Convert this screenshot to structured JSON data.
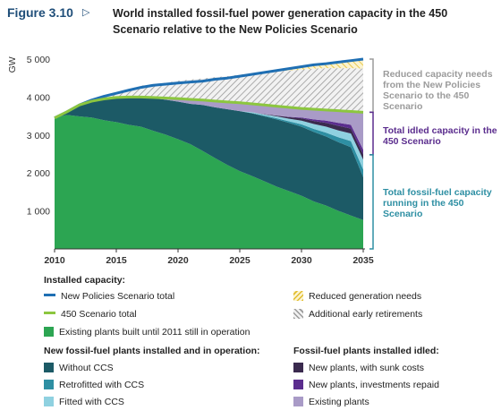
{
  "figure": {
    "number": "Figure 3.10",
    "arrow": "▷",
    "title": "World installed fossil-fuel power generation capacity in the 450 Scenario relative to the New Policies Scenario"
  },
  "chart_data": {
    "type": "area",
    "ylabel": "GW",
    "xlabel": "",
    "xlim": [
      2010,
      2035
    ],
    "ylim": [
      0,
      5000
    ],
    "x_ticks": [
      "2010",
      "2015",
      "2020",
      "2025",
      "2030",
      "2035"
    ],
    "y_ticks": [
      "1 000",
      "2 000",
      "3 000",
      "4 000",
      "5 000"
    ],
    "x": [
      2010,
      2011,
      2012,
      2013,
      2014,
      2015,
      2016,
      2017,
      2018,
      2019,
      2020,
      2021,
      2022,
      2023,
      2024,
      2025,
      2026,
      2027,
      2028,
      2029,
      2030,
      2031,
      2032,
      2033,
      2034,
      2035
    ],
    "lines": [
      {
        "name": "New Policies Scenario total",
        "color": "#1f6fb3",
        "values": [
          3450,
          3610,
          3790,
          3920,
          4020,
          4100,
          4180,
          4255,
          4310,
          4340,
          4370,
          4395,
          4420,
          4470,
          4500,
          4550,
          4600,
          4650,
          4700,
          4750,
          4800,
          4850,
          4880,
          4920,
          4960,
          5000
        ]
      },
      {
        "name": "450 Scenario total",
        "color": "#8cc63f",
        "values": [
          3450,
          3610,
          3790,
          3890,
          3950,
          3990,
          4000,
          4000,
          3990,
          3975,
          3960,
          3940,
          3920,
          3895,
          3870,
          3850,
          3820,
          3790,
          3760,
          3730,
          3700,
          3680,
          3660,
          3640,
          3620,
          3600
        ]
      }
    ],
    "areas": [
      {
        "name": "Existing plants built until 2011 still in operation",
        "color": "#2ca552",
        "values": [
          3450,
          3530,
          3490,
          3460,
          3390,
          3340,
          3270,
          3220,
          3110,
          3010,
          2890,
          2760,
          2580,
          2390,
          2210,
          2050,
          1920,
          1780,
          1640,
          1520,
          1400,
          1250,
          1140,
          1000,
          880,
          760
        ]
      },
      {
        "name": "Without CCS",
        "color": "#1c5a66",
        "values": [
          0,
          80,
          300,
          430,
          560,
          650,
          730,
          770,
          860,
          920,
          990,
          1060,
          1210,
          1340,
          1470,
          1580,
          1650,
          1710,
          1770,
          1800,
          1820,
          1830,
          1820,
          1810,
          1800,
          1130
        ]
      },
      {
        "name": "Retrofitted with CCS",
        "color": "#2e8fa3",
        "values": [
          0,
          0,
          0,
          0,
          0,
          0,
          0,
          0,
          0,
          0,
          0,
          0,
          0,
          0,
          0,
          0,
          10,
          20,
          30,
          40,
          60,
          80,
          100,
          130,
          160,
          200
        ]
      },
      {
        "name": "Fitted with CCS",
        "color": "#8fd1e0",
        "values": [
          0,
          0,
          0,
          0,
          0,
          0,
          0,
          0,
          0,
          0,
          0,
          0,
          0,
          0,
          0,
          0,
          20,
          30,
          50,
          70,
          100,
          130,
          160,
          180,
          200,
          260
        ]
      },
      {
        "name": "New plants, with sunk costs",
        "color": "#3a2a4e",
        "values": [
          0,
          0,
          0,
          0,
          0,
          0,
          0,
          0,
          0,
          0,
          0,
          0,
          0,
          0,
          0,
          0,
          0,
          10,
          20,
          40,
          60,
          80,
          100,
          120,
          130,
          140
        ]
      },
      {
        "name": "New plants, investments repaid",
        "color": "#5b2d8e",
        "values": [
          0,
          0,
          0,
          0,
          0,
          0,
          0,
          0,
          0,
          0,
          0,
          0,
          0,
          0,
          0,
          0,
          0,
          0,
          0,
          10,
          20,
          40,
          60,
          80,
          100,
          120
        ]
      },
      {
        "name": "Existing plants",
        "color": "#a99bc7",
        "values": [
          0,
          0,
          0,
          0,
          0,
          0,
          0,
          10,
          20,
          45,
          80,
          120,
          130,
          165,
          190,
          220,
          220,
          240,
          250,
          250,
          240,
          270,
          280,
          320,
          350,
          990
        ]
      },
      {
        "name": "Additional early retirements",
        "color": "#9a9a9a",
        "pattern": "hatch-grey",
        "values": [
          0,
          0,
          0,
          40,
          80,
          120,
          200,
          300,
          350,
          400,
          470,
          520,
          570,
          630,
          680,
          740,
          800,
          860,
          920,
          970,
          1020,
          1070,
          1100,
          1120,
          1140,
          1150
        ]
      },
      {
        "name": "Reduced generation needs",
        "color": "#e8c33a",
        "pattern": "hatch-yellow",
        "values": [
          0,
          0,
          0,
          0,
          0,
          0,
          0,
          0,
          0,
          0,
          0,
          0,
          0,
          0,
          0,
          0,
          0,
          0,
          10,
          30,
          60,
          100,
          140,
          180,
          220,
          250
        ]
      }
    ],
    "annotations": [
      {
        "text": "Reduced capacity needs from the New Policies Scenario to the 450 Scenario",
        "color": "#9b9b9b",
        "from": 3600,
        "to": 5000
      },
      {
        "text": "Total idled capacity in the 450 Scenario",
        "color": "#5b2d8e",
        "from": 2480,
        "to": 3600
      },
      {
        "text": "Total fossil-fuel capacity running in the 450 Scenario",
        "color": "#2e8fa3",
        "from": 0,
        "to": 2480
      }
    ]
  },
  "legend": {
    "installed_heading": "Installed capacity:",
    "new_plants_heading": "New fossil-fuel plants installed and in operation:",
    "idled_heading": "Fossil-fuel plants installed idled:",
    "items": {
      "new_policies": "New Policies Scenario total",
      "s450": "450 Scenario total",
      "existing_built": "Existing plants built until 2011 still in operation",
      "reduced_gen": "Reduced generation needs",
      "early_ret": "Additional early retirements",
      "without_ccs": "Without CCS",
      "retrofitted": "Retrofitted with CCS",
      "fitted": "Fitted with CCS",
      "sunk": "New plants, with sunk costs",
      "repaid": "New plants, investments repaid",
      "existing_idled": "Existing plants"
    }
  }
}
